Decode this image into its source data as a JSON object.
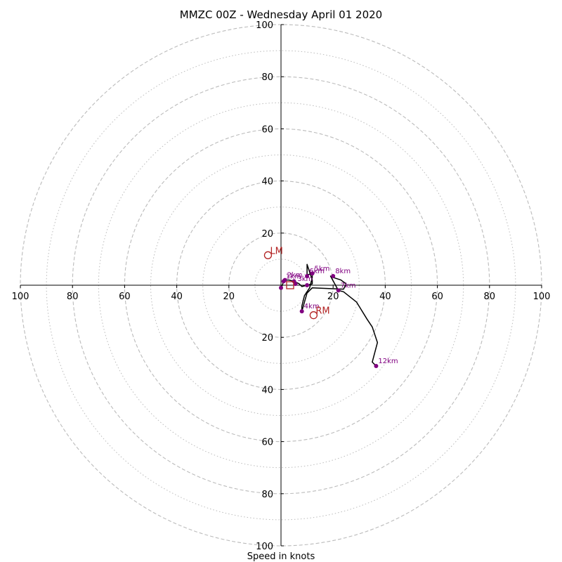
{
  "chart_data": {
    "type": "scatter",
    "subtype": "hodograph",
    "title": "MMZC 00Z - Wednesday April 01 2020",
    "xlabel": "Speed in knots",
    "ylabel": "",
    "xlim": [
      -100,
      100
    ],
    "ylim": [
      -100,
      100
    ],
    "ring_major": [
      20,
      40,
      60,
      80,
      100
    ],
    "ring_minor": [
      10,
      30,
      50,
      70,
      90
    ],
    "tick_labels": {
      "x": [
        "100",
        "80",
        "60",
        "40",
        "20",
        "20",
        "40",
        "60",
        "80",
        "100"
      ],
      "y": [
        "100",
        "80",
        "60",
        "40",
        "20",
        "20",
        "40",
        "60",
        "80",
        "100"
      ]
    },
    "x_tick_values": [
      -100,
      -80,
      -60,
      -40,
      -20,
      20,
      40,
      60,
      80,
      100
    ],
    "y_tick_values": [
      100,
      80,
      60,
      40,
      20,
      -20,
      -40,
      -60,
      -80,
      -100
    ],
    "colors": {
      "trace": "#000000",
      "points": "#800080",
      "storm": "#b22222",
      "grid": "#bbbbbb"
    },
    "trace": [
      {
        "u": 0,
        "v": -1
      },
      {
        "u": 0.5,
        "v": 0
      },
      {
        "u": 1,
        "v": 1.5
      },
      {
        "u": 1.5,
        "v": 2
      },
      {
        "u": 3,
        "v": 2
      },
      {
        "u": 5,
        "v": 1.5
      },
      {
        "u": 7,
        "v": 0.5
      },
      {
        "u": 8,
        "v": -0.5
      },
      {
        "u": 10,
        "v": 0
      },
      {
        "u": 12,
        "v": 0.5
      },
      {
        "u": 12,
        "v": 2
      },
      {
        "u": 10,
        "v": 8
      },
      {
        "u": 10,
        "v": 4
      },
      {
        "u": 12,
        "v": 4.5
      },
      {
        "u": 12,
        "v": 3
      },
      {
        "u": 11,
        "v": -1
      },
      {
        "u": 9,
        "v": -4
      },
      {
        "u": 8,
        "v": -8
      },
      {
        "u": 8,
        "v": -10
      },
      {
        "u": 10,
        "v": -3
      },
      {
        "u": 12,
        "v": -1
      },
      {
        "u": 24,
        "v": -1.5
      },
      {
        "u": 25,
        "v": 0.5
      },
      {
        "u": 23,
        "v": 2
      },
      {
        "u": 20,
        "v": 3
      },
      {
        "u": 19,
        "v": 3.5
      },
      {
        "u": 22,
        "v": -2
      },
      {
        "u": 24,
        "v": -2.5
      },
      {
        "u": 29,
        "v": -6.5
      },
      {
        "u": 33,
        "v": -13
      },
      {
        "u": 35,
        "v": -16
      },
      {
        "u": 37,
        "v": -22
      },
      {
        "u": 35,
        "v": -29.5
      },
      {
        "u": 36.5,
        "v": -31
      }
    ],
    "points": [
      {
        "label": "",
        "u": 0,
        "v": -1
      },
      {
        "label": "1km",
        "u": 1,
        "v": 1.5
      },
      {
        "label": "2km",
        "u": 1.5,
        "v": 2
      },
      {
        "label": "",
        "u": 5,
        "v": 1.5
      },
      {
        "label": "3km",
        "u": 5.5,
        "v": 0.5
      },
      {
        "label": "",
        "u": 10,
        "v": 0
      },
      {
        "label": "5km",
        "u": 12,
        "v": 4.5
      },
      {
        "label": "6km",
        "u": 10,
        "v": 3.5
      },
      {
        "label": "4km",
        "u": 8,
        "v": -10
      },
      {
        "label": "8km",
        "u": 20,
        "v": 3.5
      },
      {
        "label": "7km",
        "u": 22,
        "v": -2
      },
      {
        "label": "12km",
        "u": 36.5,
        "v": -31
      }
    ],
    "storm_motion": [
      {
        "label": "LM",
        "u": -5,
        "v": 11.5
      },
      {
        "label": "RM",
        "u": 12.5,
        "v": -11.5
      }
    ],
    "mean_wind": {
      "label": "",
      "u": 3.5,
      "v": 0
    }
  }
}
